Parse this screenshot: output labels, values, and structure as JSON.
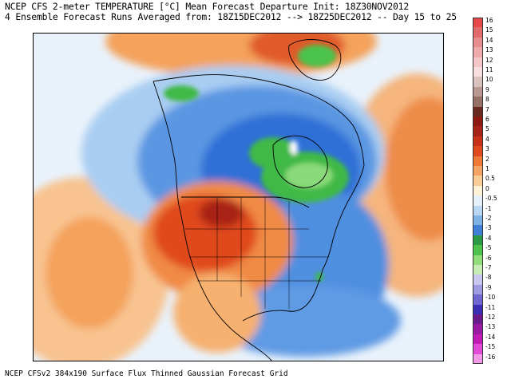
{
  "header": {
    "line1": "NCEP CFS 2-meter TEMPERATURE [°C] Mean Forecast Departure Init: 18Z30NOV2012",
    "line2": "4 Ensemble Forecast Runs Averaged from: 18Z15DEC2012 --> 18Z25DEC2012 -- Day 15 to 25"
  },
  "footer": "NCEP CFSv2 384x190 Surface Flux Thinned Gaussian Forecast Grid",
  "legend": [
    {
      "label": "16",
      "color": "#e8484a"
    },
    {
      "label": "15",
      "color": "#e26a6c"
    },
    {
      "label": "14",
      "color": "#e98c8e"
    },
    {
      "label": "13",
      "color": "#efaaab"
    },
    {
      "label": "12",
      "color": "#f4c6c7"
    },
    {
      "label": "11",
      "color": "#f8dede"
    },
    {
      "label": "10",
      "color": "#d9c1bd"
    },
    {
      "label": "9",
      "color": "#b89891"
    },
    {
      "label": "8",
      "color": "#977066"
    },
    {
      "label": "7",
      "color": "#6a2a20"
    },
    {
      "label": "6",
      "color": "#8c1a12"
    },
    {
      "label": "5",
      "color": "#a82317"
    },
    {
      "label": "4",
      "color": "#c8301a"
    },
    {
      "label": "3",
      "color": "#e04a1e"
    },
    {
      "label": "2",
      "color": "#ef7a38"
    },
    {
      "label": "1",
      "color": "#f5a363"
    },
    {
      "label": "0.5",
      "color": "#f9cc98"
    },
    {
      "label": "0",
      "color": "#fdf1d8"
    },
    {
      "label": "-0.5",
      "color": "#e6f0fb"
    },
    {
      "label": "-1",
      "color": "#b9d7f2"
    },
    {
      "label": "-2",
      "color": "#7fb3e8"
    },
    {
      "label": "-3",
      "color": "#3f7fd8"
    },
    {
      "label": "-4",
      "color": "#2a9a45"
    },
    {
      "label": "-5",
      "color": "#4cc34c"
    },
    {
      "label": "-6",
      "color": "#93dc7c"
    },
    {
      "label": "-7",
      "color": "#c8ecb5"
    },
    {
      "label": "-8",
      "color": "#c9c7ef"
    },
    {
      "label": "-9",
      "color": "#9f9be3"
    },
    {
      "label": "-10",
      "color": "#6f67d2"
    },
    {
      "label": "-11",
      "color": "#3b2fb5"
    },
    {
      "label": "-12",
      "color": "#6b1a8c"
    },
    {
      "label": "-13",
      "color": "#9a1aa3"
    },
    {
      "label": "-14",
      "color": "#c21ab8"
    },
    {
      "label": "-15",
      "color": "#e34ad8"
    },
    {
      "label": "-16",
      "color": "#f29ae8"
    }
  ],
  "colors": {
    "deep_blue": "#2f6fd6",
    "blue": "#4f8fe0",
    "light_blue": "#9cc7f0",
    "pale_blue": "#d5e8f9",
    "near_white": "#f6f8fc",
    "green": "#3fb947",
    "light_green": "#8ad97a",
    "orange": "#f4a25c",
    "pale_orange": "#f9cc98",
    "red_orange": "#e85a22",
    "red": "#c8301a",
    "dark_red": "#8c1a12"
  }
}
